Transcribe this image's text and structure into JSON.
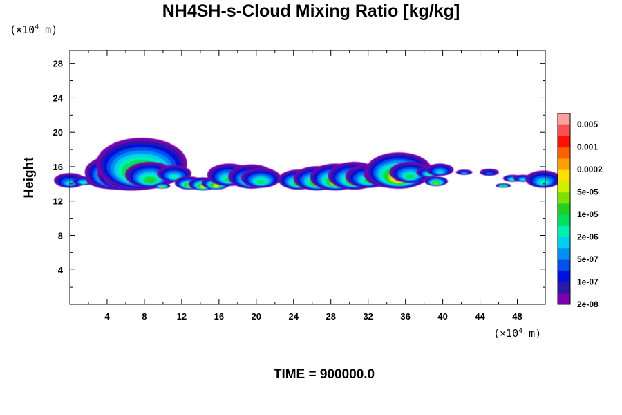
{
  "chart_data": {
    "type": "heatmap",
    "title": "NH4SH-s-Cloud Mixing Ratio [kg/kg]",
    "ylabel": "Height",
    "xlabel": "",
    "x_unit_prefix": "(×10",
    "x_unit_exp": "4",
    "x_unit_suffix": " m)",
    "y_unit_prefix": "(×10",
    "y_unit_exp": "4",
    "y_unit_suffix": " m)",
    "xlim": [
      0,
      51
    ],
    "ylim": [
      0,
      29.5
    ],
    "x_ticks": [
      4,
      8,
      12,
      16,
      20,
      24,
      28,
      32,
      36,
      40,
      44,
      48
    ],
    "y_ticks": [
      4,
      8,
      12,
      16,
      20,
      24,
      28
    ],
    "colorbar": {
      "labels": [
        "0.005",
        "0.001",
        "0.0002",
        "5e-05",
        "1e-05",
        "2e-06",
        "5e-07",
        "1e-07",
        "2e-08"
      ],
      "colors": [
        "#7a00b0",
        "#2a18a8",
        "#0010e0",
        "#0050f0",
        "#0090f0",
        "#00d0f0",
        "#00f0b0",
        "#00e060",
        "#20d020",
        "#80e000",
        "#d0f000",
        "#ffe000",
        "#ffa000",
        "#ff6000",
        "#ff1000",
        "#ff5050",
        "#ffa0a0"
      ]
    },
    "cloud_blobs": [
      {
        "x": 0.0,
        "ytop": 15.2,
        "ybot": 13.6,
        "level": 5
      },
      {
        "x": 1.5,
        "ytop": 14.8,
        "ybot": 13.9,
        "level": 6
      },
      {
        "x": 3.2,
        "ytop": 15.0,
        "ybot": 13.8,
        "level": 5
      },
      {
        "x": 4.0,
        "ytop": 15.8,
        "ybot": 13.5,
        "level": 7
      },
      {
        "x": 5.0,
        "ytop": 17.3,
        "ybot": 13.4,
        "level": 11
      },
      {
        "x": 6.2,
        "ytop": 17.0,
        "ybot": 13.3,
        "level": 14
      },
      {
        "x": 7.0,
        "ytop": 17.5,
        "ybot": 13.3,
        "level": 13
      },
      {
        "x": 7.7,
        "ytop": 19.3,
        "ybot": 13.4,
        "level": 11
      },
      {
        "x": 8.6,
        "ytop": 16.5,
        "ybot": 13.6,
        "level": 8
      },
      {
        "x": 9.9,
        "ytop": 14.0,
        "ybot": 13.5,
        "level": 9
      },
      {
        "x": 11.2,
        "ytop": 16.1,
        "ybot": 14.3,
        "level": 6
      },
      {
        "x": 12.8,
        "ytop": 14.8,
        "ybot": 13.4,
        "level": 9
      },
      {
        "x": 14.3,
        "ytop": 14.7,
        "ybot": 13.3,
        "level": 10
      },
      {
        "x": 15.7,
        "ytop": 14.8,
        "ybot": 13.4,
        "level": 10
      },
      {
        "x": 17.1,
        "ytop": 16.3,
        "ybot": 13.8,
        "level": 7
      },
      {
        "x": 19.5,
        "ytop": 16.2,
        "ybot": 13.5,
        "level": 8
      },
      {
        "x": 20.5,
        "ytop": 15.8,
        "ybot": 13.6,
        "level": 7
      },
      {
        "x": 24.5,
        "ytop": 15.6,
        "ybot": 13.4,
        "level": 8
      },
      {
        "x": 26.5,
        "ytop": 16.0,
        "ybot": 13.3,
        "level": 9
      },
      {
        "x": 28.5,
        "ytop": 16.3,
        "ybot": 13.3,
        "level": 10
      },
      {
        "x": 30.5,
        "ytop": 16.5,
        "ybot": 13.4,
        "level": 9
      },
      {
        "x": 32.0,
        "ytop": 16.2,
        "ybot": 13.6,
        "level": 7
      },
      {
        "x": 34.4,
        "ytop": 16.8,
        "ybot": 13.6,
        "level": 8
      },
      {
        "x": 35.3,
        "ytop": 17.6,
        "ybot": 13.5,
        "level": 12
      },
      {
        "x": 36.5,
        "ytop": 16.5,
        "ybot": 14.2,
        "level": 7
      },
      {
        "x": 38.5,
        "ytop": 15.9,
        "ybot": 14.8,
        "level": 6
      },
      {
        "x": 39.7,
        "ytop": 16.3,
        "ybot": 15.0,
        "level": 5
      },
      {
        "x": 39.3,
        "ytop": 14.8,
        "ybot": 13.8,
        "level": 9
      },
      {
        "x": 42.3,
        "ytop": 15.6,
        "ybot": 15.1,
        "level": 4
      },
      {
        "x": 45.0,
        "ytop": 15.7,
        "ybot": 15.0,
        "level": 3
      },
      {
        "x": 46.5,
        "ytop": 14.0,
        "ybot": 13.6,
        "level": 8
      },
      {
        "x": 47.5,
        "ytop": 15.0,
        "ybot": 14.3,
        "level": 6
      },
      {
        "x": 48.6,
        "ytop": 15.0,
        "ybot": 14.3,
        "level": 5
      },
      {
        "x": 50.8,
        "ytop": 15.5,
        "ybot": 13.6,
        "level": 6
      }
    ]
  },
  "footer": {
    "time_label": "TIME = 900000.0"
  }
}
